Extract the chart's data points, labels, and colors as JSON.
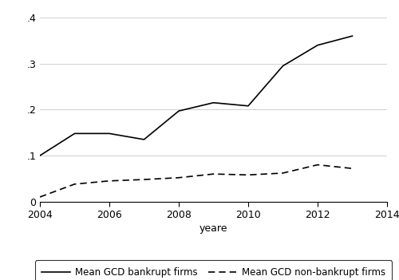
{
  "years": [
    2004,
    2005,
    2006,
    2007,
    2008,
    2009,
    2010,
    2011,
    2012,
    2013
  ],
  "bankrupt": [
    0.1,
    0.148,
    0.148,
    0.135,
    0.197,
    0.215,
    0.208,
    0.295,
    0.34,
    0.36
  ],
  "non_bankrupt": [
    0.01,
    0.038,
    0.045,
    0.048,
    0.052,
    0.06,
    0.058,
    0.062,
    0.08,
    0.072
  ],
  "xlim": [
    2004,
    2014
  ],
  "ylim": [
    0,
    0.42
  ],
  "yticks": [
    0,
    0.1,
    0.2,
    0.3,
    0.4
  ],
  "ytick_labels": [
    "0",
    ".1",
    ".2",
    ".3",
    ".4"
  ],
  "xticks": [
    2004,
    2006,
    2008,
    2010,
    2012,
    2014
  ],
  "xlabel": "yeare",
  "legend_bankrupt": "Mean GCD bankrupt firms",
  "legend_non_bankrupt": "Mean GCD non-bankrupt firms",
  "line_color": "#000000",
  "background_color": "#ffffff",
  "grid_color": "#c8c8c8"
}
